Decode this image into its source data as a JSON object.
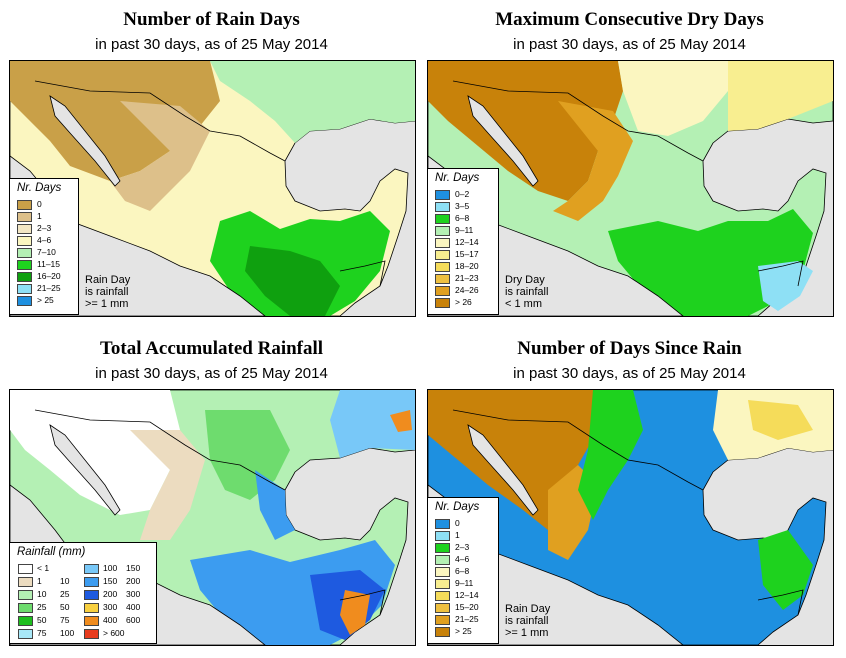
{
  "panels": [
    {
      "title": "Number of Rain Days",
      "subtitle_prefix": "in past 30 days, as of",
      "date": "25 May 2014",
      "legend_title": "Nr. Days",
      "legend": [
        {
          "label": "0",
          "color": "#c9a048"
        },
        {
          "label": "1",
          "color": "#ddc08a"
        },
        {
          "label": "2–3",
          "color": "#f2e6c4"
        },
        {
          "label": "4–6",
          "color": "#fbf6c0"
        },
        {
          "label": "7–10",
          "color": "#b4f0b4"
        },
        {
          "label": "11–15",
          "color": "#1ed21e"
        },
        {
          "label": "16–20",
          "color": "#0fa00f"
        },
        {
          "label": "21–25",
          "color": "#8ee0f5"
        },
        {
          "label": "> 25",
          "color": "#1e90e0"
        }
      ],
      "note": [
        "Rain Day",
        "is rainfall",
        ">= 1 mm"
      ]
    },
    {
      "title": "Maximum Consecutive Dry Days",
      "subtitle_prefix": "in past 30 days, as of",
      "date": "25 May 2014",
      "legend_title": "Nr. Days",
      "legend": [
        {
          "label": "0–2",
          "color": "#1e90e0"
        },
        {
          "label": "3–5",
          "color": "#8ee0f5"
        },
        {
          "label": "6–8",
          "color": "#1ed21e"
        },
        {
          "label": "9–11",
          "color": "#b4f0b4"
        },
        {
          "label": "12–14",
          "color": "#fbf6c0"
        },
        {
          "label": "15–17",
          "color": "#f8ee90"
        },
        {
          "label": "18–20",
          "color": "#f5dc5a"
        },
        {
          "label": "21–23",
          "color": "#eec040"
        },
        {
          "label": "24–26",
          "color": "#e0a020"
        },
        {
          "label": "> 26",
          "color": "#c8820a"
        }
      ],
      "note": [
        "Dry Day",
        "is rainfall",
        "< 1 mm"
      ]
    },
    {
      "title": "Total Accumulated Rainfall",
      "subtitle_prefix": "in past 30 days, as of",
      "date": "25 May 2014",
      "legend_title": "Rainfall (mm)",
      "legend_left": [
        {
          "a": "< 1",
          "b": "",
          "color": "#ffffff"
        },
        {
          "a": "1",
          "b": "10",
          "color": "#ecdcc0"
        },
        {
          "a": "10",
          "b": "25",
          "color": "#b4f0b4"
        },
        {
          "a": "25",
          "b": "50",
          "color": "#6edc6e"
        },
        {
          "a": "50",
          "b": "75",
          "color": "#1ebe1e"
        },
        {
          "a": "75",
          "b": "100",
          "color": "#a8e8f8"
        }
      ],
      "legend_right": [
        {
          "a": "100",
          "b": "150",
          "color": "#78c8f8"
        },
        {
          "a": "150",
          "b": "200",
          "color": "#3c9cf0"
        },
        {
          "a": "200",
          "b": "300",
          "color": "#1e5ae0"
        },
        {
          "a": "300",
          "b": "400",
          "color": "#f8d040"
        },
        {
          "a": "400",
          "b": "600",
          "color": "#f08c1e"
        },
        {
          "a": "> 600",
          "b": "",
          "color": "#e83c1e"
        }
      ]
    },
    {
      "title": "Number of Days Since Rain",
      "subtitle_prefix": "in past 30 days, as of",
      "date": "25 May 2014",
      "legend_title": "Nr. Days",
      "legend": [
        {
          "label": "0",
          "color": "#1e90e0"
        },
        {
          "label": "1",
          "color": "#8ee0f5"
        },
        {
          "label": "2–3",
          "color": "#1ed21e"
        },
        {
          "label": "4–6",
          "color": "#b4f0b4"
        },
        {
          "label": "6–8",
          "color": "#fbf6c0"
        },
        {
          "label": "9–11",
          "color": "#f8ee90"
        },
        {
          "label": "12–14",
          "color": "#f5dc5a"
        },
        {
          "label": "15–20",
          "color": "#eec040"
        },
        {
          "label": "21–25",
          "color": "#e0a020"
        },
        {
          "label": "> 25",
          "color": "#c8820a"
        }
      ],
      "note": [
        "Rain Day",
        "is rainfall",
        ">= 1 mm"
      ]
    }
  ],
  "colors": {
    "ocean": "#e4e4e4",
    "border": "#000000"
  }
}
